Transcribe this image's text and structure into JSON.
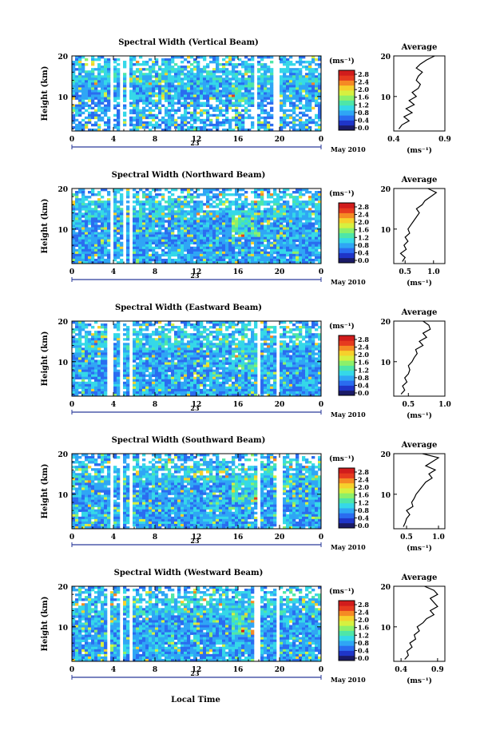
{
  "figure": {
    "month_label": "May 2010",
    "date_label": "23",
    "xlabel": "Local Time",
    "ylabel": "Height (km)",
    "x_ticks": [
      "0",
      "4",
      "8",
      "12",
      "16",
      "20",
      "0"
    ],
    "y_ticks": [
      "10",
      "20"
    ],
    "colorbar_unit": "(ms⁻¹)",
    "colorbar_ticks": [
      "0.0",
      "0.4",
      "0.8",
      "1.2",
      "1.6",
      "2.0",
      "2.4",
      "2.8"
    ],
    "avg_title": "Average",
    "avg_unit": "(ms⁻¹)",
    "colorscale": [
      "#1a1a66",
      "#1f35c8",
      "#2a6cf0",
      "#2fa6f5",
      "#35d8e8",
      "#4ee6a8",
      "#8cf06a",
      "#d6f040",
      "#f6d02c",
      "#f58a24",
      "#e63a1f",
      "#d11c1c"
    ]
  },
  "chart_data": [
    {
      "type": "heatmap",
      "title": "Spectral Width (Vertical Beam)",
      "xlim": [
        0,
        24
      ],
      "ylim": [
        1.5,
        20
      ],
      "xlabel": "Local Time",
      "ylabel": "Height (km)",
      "gaps_hours": [
        [
          3.6,
          4.0
        ],
        [
          4.5,
          4.9
        ],
        [
          5.3,
          5.6
        ],
        [
          17.5,
          17.8
        ],
        [
          19.5,
          19.9
        ]
      ],
      "zlim": [
        0,
        2.8
      ],
      "average_profile": {
        "xlim": [
          0.4,
          0.9
        ],
        "x_ticks": [
          "0.4",
          "0.9"
        ],
        "height_km": [
          2,
          3,
          4,
          5,
          6,
          7,
          8,
          9,
          10,
          11,
          12,
          13,
          14,
          15,
          16,
          17,
          18,
          19,
          20
        ],
        "value_ms": [
          0.45,
          0.48,
          0.55,
          0.5,
          0.58,
          0.52,
          0.6,
          0.55,
          0.62,
          0.58,
          0.64,
          0.66,
          0.62,
          0.64,
          0.68,
          0.62,
          0.66,
          0.72,
          0.8
        ]
      }
    },
    {
      "type": "heatmap",
      "title": "Spectral Width (Northward Beam)",
      "xlim": [
        0,
        24
      ],
      "ylim": [
        1.5,
        20
      ],
      "xlabel": "Local Time",
      "ylabel": "Height (km)",
      "gaps_hours": [
        [
          3.6,
          4.0
        ],
        [
          4.9,
          5.3
        ],
        [
          5.4,
          5.7
        ]
      ],
      "zlim": [
        0,
        2.8
      ],
      "average_profile": {
        "xlim": [
          0.3,
          1.2
        ],
        "x_ticks": [
          "0.5",
          "1.0"
        ],
        "height_km": [
          2,
          3,
          4,
          5,
          6,
          7,
          8,
          9,
          10,
          11,
          12,
          13,
          14,
          15,
          16,
          17,
          18,
          19,
          20
        ],
        "value_ms": [
          0.45,
          0.5,
          0.42,
          0.52,
          0.48,
          0.55,
          0.5,
          0.58,
          0.55,
          0.6,
          0.65,
          0.7,
          0.75,
          0.7,
          0.8,
          0.85,
          0.95,
          1.05,
          0.9
        ]
      }
    },
    {
      "type": "heatmap",
      "title": "Spectral Width (Eastward Beam)",
      "xlim": [
        0,
        24
      ],
      "ylim": [
        1.5,
        20
      ],
      "xlabel": "Local Time",
      "ylabel": "Height (km)",
      "gaps_hours": [
        [
          3.4,
          3.9
        ],
        [
          4.6,
          5.0
        ],
        [
          5.5,
          5.9
        ],
        [
          17.8,
          18.2
        ],
        [
          19.8,
          20.1
        ]
      ],
      "zlim": [
        0,
        2.8
      ],
      "average_profile": {
        "xlim": [
          0.3,
          1.0
        ],
        "x_ticks": [
          "0.5",
          "1.0"
        ],
        "height_km": [
          2,
          3,
          4,
          5,
          6,
          7,
          8,
          9,
          10,
          11,
          12,
          13,
          14,
          15,
          16,
          17,
          18,
          19,
          20
        ],
        "value_ms": [
          0.4,
          0.45,
          0.42,
          0.48,
          0.45,
          0.5,
          0.52,
          0.5,
          0.55,
          0.58,
          0.62,
          0.6,
          0.7,
          0.65,
          0.75,
          0.7,
          0.8,
          0.78,
          0.7
        ]
      }
    },
    {
      "type": "heatmap",
      "title": "Spectral Width (Southward Beam)",
      "xlim": [
        0,
        24
      ],
      "ylim": [
        1.5,
        20
      ],
      "xlabel": "Local Time",
      "ylabel": "Height (km)",
      "gaps_hours": [
        [
          3.6,
          4.0
        ],
        [
          4.6,
          5.0
        ],
        [
          5.4,
          5.8
        ],
        [
          17.7,
          18.1
        ],
        [
          19.8,
          20.2
        ]
      ],
      "zlim": [
        0,
        2.8
      ],
      "average_profile": {
        "xlim": [
          0.3,
          1.1
        ],
        "x_ticks": [
          "0.5",
          "1.0"
        ],
        "height_km": [
          2,
          3,
          4,
          5,
          6,
          7,
          8,
          9,
          10,
          11,
          12,
          13,
          14,
          15,
          16,
          17,
          18,
          19,
          20
        ],
        "value_ms": [
          0.45,
          0.48,
          0.5,
          0.55,
          0.5,
          0.6,
          0.58,
          0.62,
          0.65,
          0.7,
          0.75,
          0.8,
          0.9,
          0.85,
          0.95,
          0.8,
          0.9,
          1.0,
          0.75
        ]
      }
    },
    {
      "type": "heatmap",
      "title": "Spectral Width (Westward Beam)",
      "xlim": [
        0,
        24
      ],
      "ylim": [
        1.5,
        20
      ],
      "xlabel": "Local Time",
      "ylabel": "Height (km)",
      "gaps_hours": [
        [
          3.4,
          3.8
        ],
        [
          4.6,
          5.0
        ],
        [
          5.4,
          5.8
        ],
        [
          17.6,
          18.0
        ],
        [
          19.6,
          20.0
        ]
      ],
      "zlim": [
        0,
        2.8
      ],
      "average_profile": {
        "xlim": [
          0.3,
          1.0
        ],
        "x_ticks": [
          "0.4",
          "0.9"
        ],
        "height_km": [
          2,
          3,
          4,
          5,
          6,
          7,
          8,
          9,
          10,
          11,
          12,
          13,
          14,
          15,
          16,
          17,
          18,
          19,
          20
        ],
        "value_ms": [
          0.45,
          0.5,
          0.48,
          0.55,
          0.52,
          0.6,
          0.58,
          0.65,
          0.62,
          0.7,
          0.75,
          0.85,
          0.8,
          0.9,
          0.85,
          0.8,
          0.9,
          0.85,
          0.72
        ]
      }
    }
  ]
}
